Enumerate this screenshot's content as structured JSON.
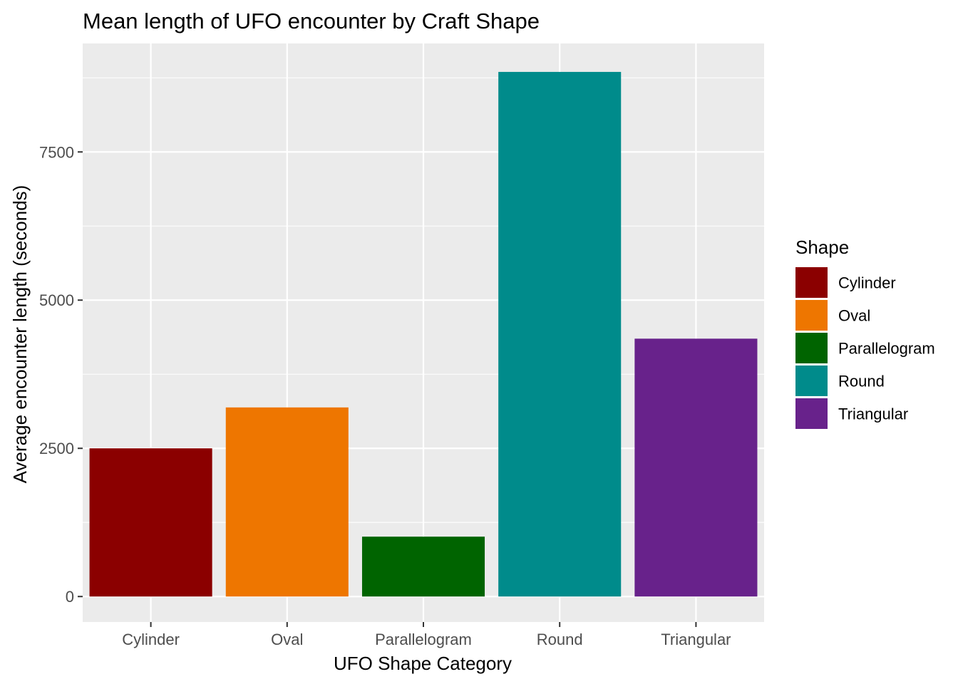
{
  "chart_data": {
    "type": "bar",
    "title": "Mean length of UFO encounter by Craft Shape",
    "xlabel": "UFO Shape Category",
    "ylabel": "Average encounter length (seconds)",
    "categories": [
      "Cylinder",
      "Oval",
      "Parallelogram",
      "Round",
      "Triangular"
    ],
    "values": [
      2500,
      3190,
      1010,
      8850,
      4350
    ],
    "colors": [
      "#8B0000",
      "#EE7600",
      "#006400",
      "#008B8B",
      "#68228B"
    ],
    "ylim": [
      -430,
      9330
    ],
    "yticks": [
      0,
      2500,
      5000,
      7500
    ],
    "ytick_labels": [
      "0",
      "2500",
      "5000",
      "7500"
    ],
    "grid": true,
    "legend": {
      "title": "Shape",
      "position": "right",
      "items": [
        "Cylinder",
        "Oval",
        "Parallelogram",
        "Round",
        "Triangular"
      ]
    }
  }
}
